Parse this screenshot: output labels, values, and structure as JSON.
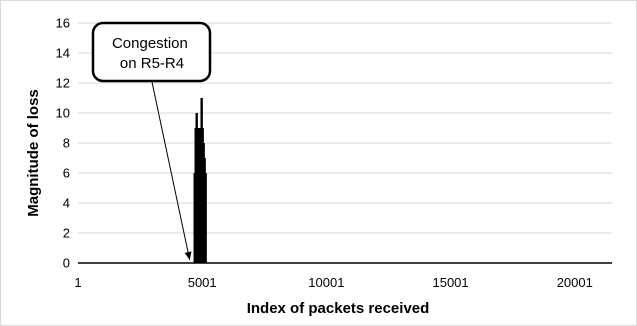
{
  "chart_data": {
    "type": "bar",
    "title": "",
    "xlabel": "Index of packets received",
    "ylabel": "Magnitude of loss",
    "xlim": [
      1,
      21500
    ],
    "ylim": [
      0,
      16
    ],
    "xticks": [
      1,
      5001,
      10001,
      15001,
      20001
    ],
    "yticks": [
      0,
      2,
      4,
      6,
      8,
      10,
      12,
      14,
      16
    ],
    "grid": "horizontal",
    "legend": "none",
    "bar_color": "#000000",
    "grid_color": "#d9d9d9",
    "series": [
      {
        "x": [
          4700,
          4740,
          4780,
          4820,
          4860,
          4900,
          4940,
          4980,
          5020,
          5060,
          5100,
          5140
        ],
        "values": [
          6,
          9,
          10,
          9,
          8,
          9,
          6,
          11,
          9,
          8,
          7,
          6
        ]
      }
    ],
    "annotations": [
      {
        "text": "Congestion on R5-R4",
        "lines": [
          "Congestion",
          "on R5-R4"
        ],
        "points_to_x": 4700,
        "points_to_y": 0
      }
    ]
  }
}
